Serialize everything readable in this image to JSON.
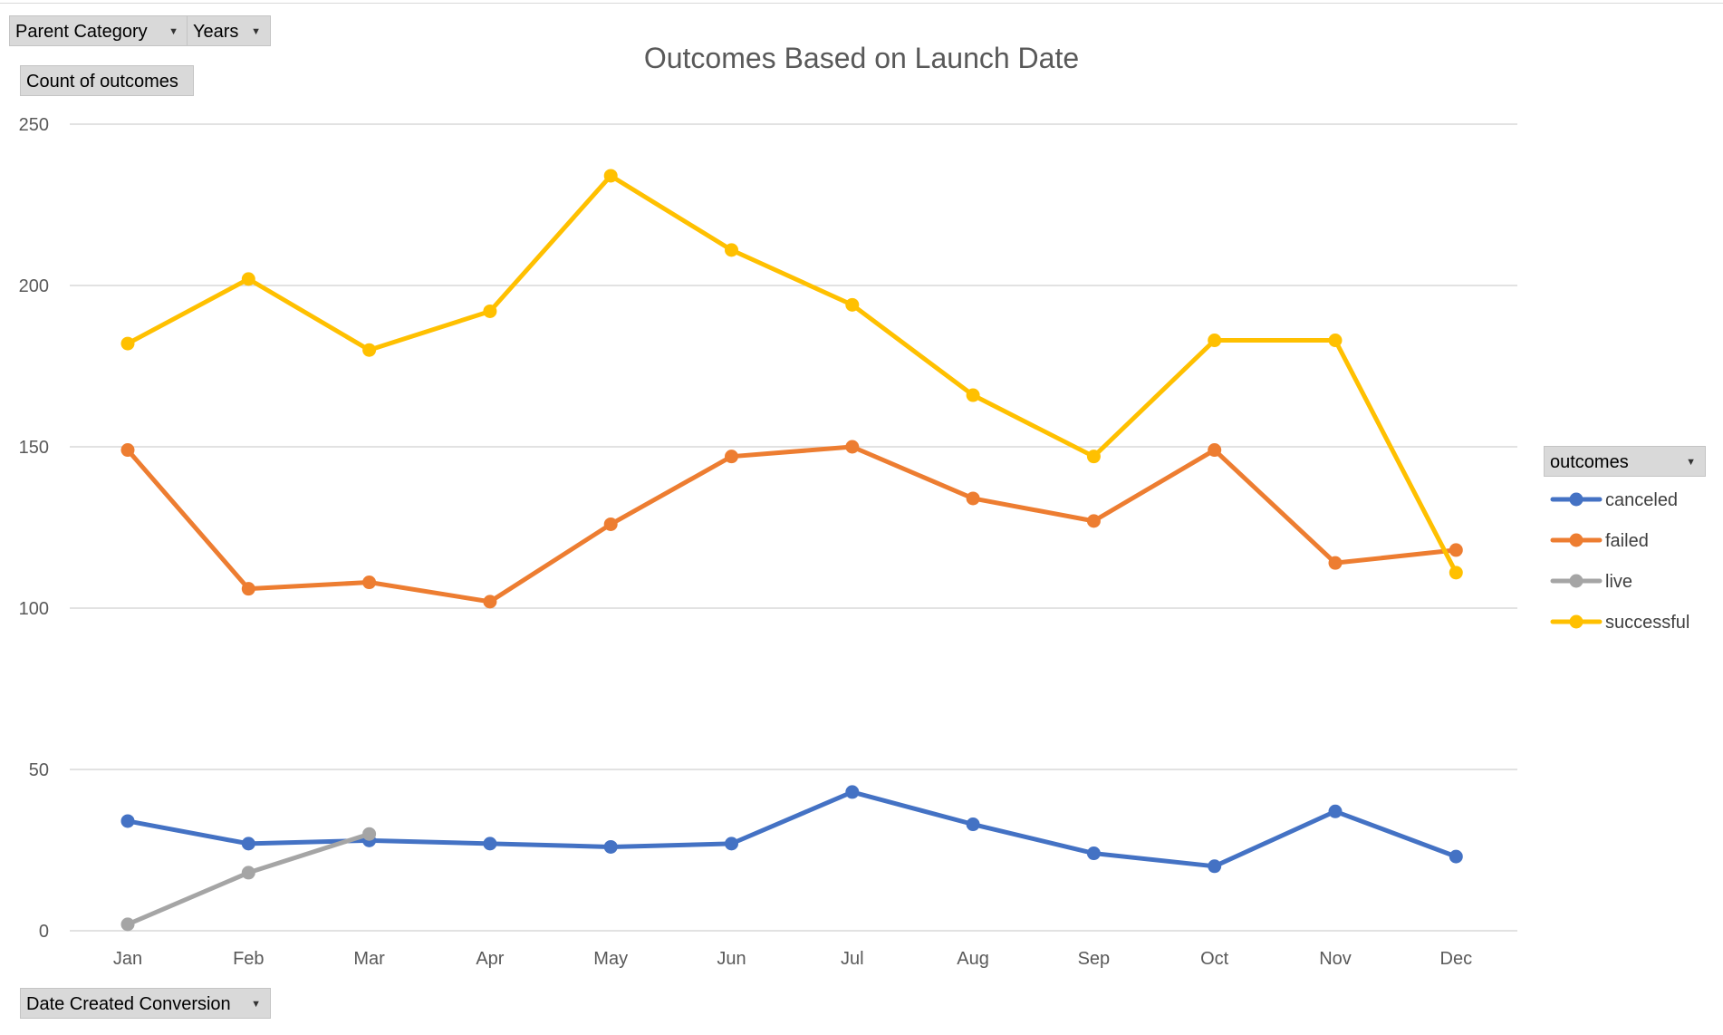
{
  "filters": {
    "parent_category": "Parent Category",
    "years": "Years",
    "value_field": "Count of outcomes",
    "axis_field": "Date Created Conversion",
    "legend_field": "outcomes"
  },
  "colors": {
    "canceled": "#4472C4",
    "failed": "#ED7D31",
    "live": "#A5A5A5",
    "successful": "#FFC000",
    "gridline": "#d9d9d9",
    "button_bg": "#d9d9d9"
  },
  "chart_data": {
    "type": "line",
    "title": "Outcomes Based on Launch Date",
    "xlabel": "",
    "ylabel": "",
    "ylim": [
      0,
      250
    ],
    "yticks": [
      0,
      50,
      100,
      150,
      200,
      250
    ],
    "grid": true,
    "legend_position": "right",
    "categories": [
      "Jan",
      "Feb",
      "Mar",
      "Apr",
      "May",
      "Jun",
      "Jul",
      "Aug",
      "Sep",
      "Oct",
      "Nov",
      "Dec"
    ],
    "series": [
      {
        "name": "canceled",
        "color": "#4472C4",
        "values": [
          34,
          27,
          28,
          27,
          26,
          27,
          43,
          33,
          24,
          20,
          37,
          23
        ]
      },
      {
        "name": "failed",
        "color": "#ED7D31",
        "values": [
          149,
          106,
          108,
          102,
          126,
          147,
          150,
          134,
          127,
          149,
          114,
          118
        ]
      },
      {
        "name": "live",
        "color": "#A5A5A5",
        "values": [
          2,
          18,
          30,
          null,
          null,
          null,
          null,
          null,
          null,
          null,
          null,
          null
        ]
      },
      {
        "name": "successful",
        "color": "#FFC000",
        "values": [
          182,
          202,
          180,
          192,
          234,
          211,
          194,
          166,
          147,
          183,
          183,
          111
        ]
      }
    ]
  }
}
